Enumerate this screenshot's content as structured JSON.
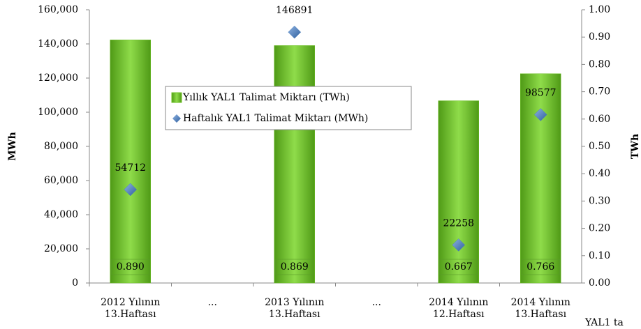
{
  "chart_data": {
    "type": "bar",
    "categories": [
      "2012 Yılının 13.Haftası",
      "...",
      "2013 Yılının 13.Haftası",
      "...",
      "2014 Yılının 12.Haftası",
      "2014 Yılının 13.Haftası"
    ],
    "series": [
      {
        "name": "Yıllık YAL1 Talimat Miktarı (TWh)",
        "type": "bar",
        "axis": "y2",
        "color": "#6cc024",
        "values": [
          0.89,
          null,
          0.869,
          null,
          0.667,
          0.766
        ],
        "value_labels": [
          "0.890",
          null,
          "0.869",
          null,
          "0.667",
          "0.766"
        ]
      },
      {
        "name": "Haftalık YAL1 Talimat Miktarı (MWh)",
        "type": "scatter",
        "axis": "y",
        "color": "#4a7ebb",
        "values": [
          54712,
          null,
          146891,
          null,
          22258,
          98577
        ]
      }
    ],
    "ylabel": "MWh",
    "y2label": "TWh",
    "annotation": "YAL1 ta",
    "ylim": [
      0,
      160000
    ],
    "yticks": [
      0,
      {
        "value": 20000,
        "label": "20,000"
      },
      {
        "value": 40000,
        "label": "40,000"
      },
      {
        "value": 60000,
        "label": "60,000"
      },
      {
        "value": 80000,
        "label": "80,000"
      },
      {
        "value": 100000,
        "label": "100,000"
      },
      {
        "value": 120000,
        "label": "120,000"
      },
      {
        "value": 140000,
        "label": "140,000"
      },
      {
        "value": 160000,
        "label": "160,000"
      }
    ],
    "y2lim": [
      0,
      1
    ],
    "y2ticks": [
      {
        "value": 0,
        "label": "0.00"
      },
      {
        "value": 0.1,
        "label": "0.10"
      },
      {
        "value": 0.2,
        "label": "0.20"
      },
      {
        "value": 0.3,
        "label": "0.30"
      },
      {
        "value": 0.4,
        "label": "0.40"
      },
      {
        "value": 0.5,
        "label": "0.50"
      },
      {
        "value": 0.6,
        "label": "0.60"
      },
      {
        "value": 0.7,
        "label": "0.70"
      },
      {
        "value": 0.8,
        "label": "0.80"
      },
      {
        "value": 0.9,
        "label": "0.90"
      },
      {
        "value": 1,
        "label": "1.00"
      }
    ],
    "grid": false
  }
}
